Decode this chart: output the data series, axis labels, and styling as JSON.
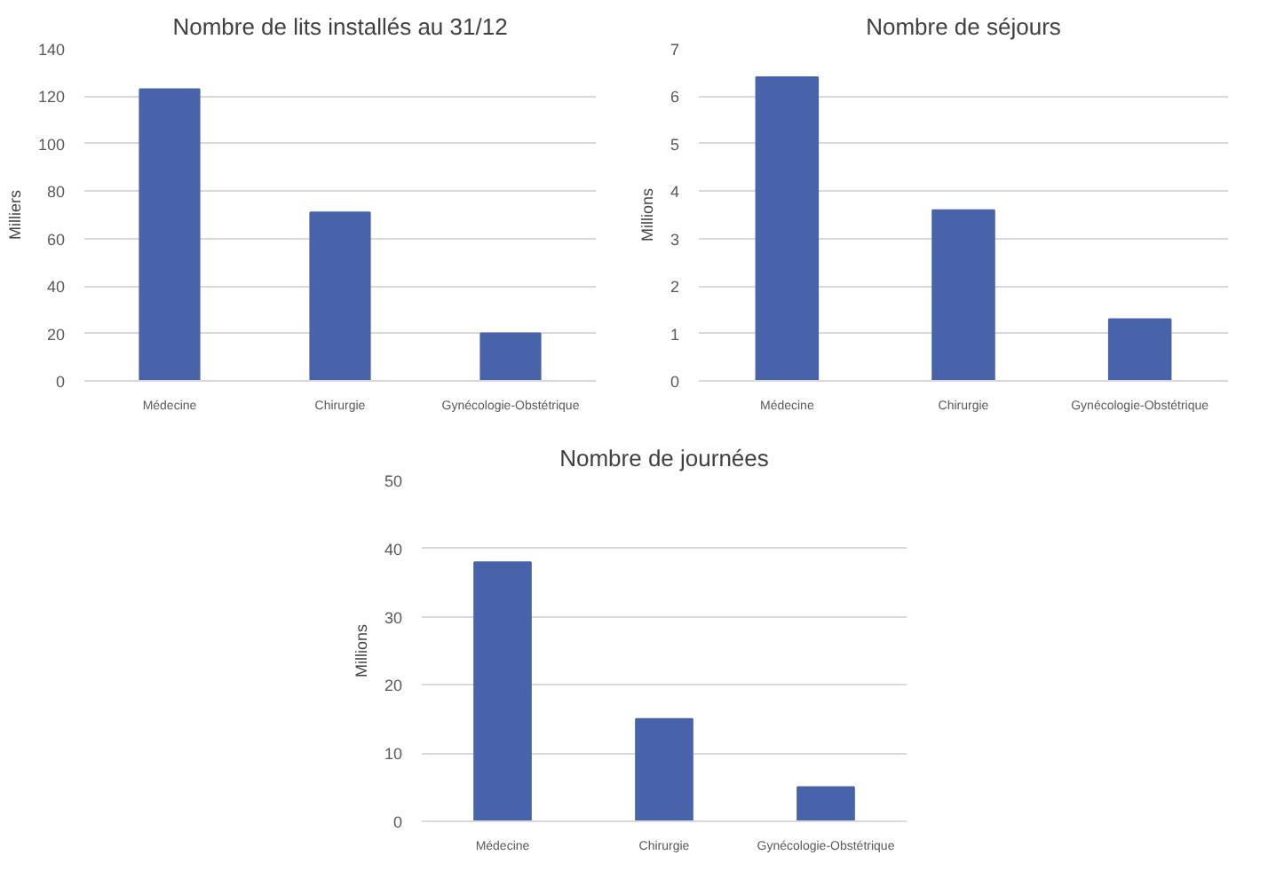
{
  "chart_data": [
    {
      "type": "bar",
      "title": "Nombre de lits installés au 31/12",
      "ylabel": "Milliers",
      "categories": [
        "Médecine",
        "Chirurgie",
        "Gynécologie-Obstétrique"
      ],
      "values": [
        123,
        71,
        20
      ],
      "color": "#4863aa",
      "ylim": [
        0,
        140
      ],
      "yticks": [
        0,
        20,
        40,
        60,
        80,
        100,
        120,
        140
      ],
      "grid": "y"
    },
    {
      "type": "bar",
      "title": "Nombre de séjours",
      "ylabel": "Millions",
      "categories": [
        "Médecine",
        "Chirurgie",
        "Gynécologie-Obstétrique"
      ],
      "values": [
        6.4,
        3.6,
        1.3
      ],
      "color": "#4863aa",
      "ylim": [
        0,
        7
      ],
      "yticks": [
        0,
        1,
        2,
        3,
        4,
        5,
        6,
        7
      ],
      "grid": "y"
    },
    {
      "type": "bar",
      "title": "Nombre de journées",
      "ylabel": "Millions",
      "categories": [
        "Médecine",
        "Chirurgie",
        "Gynécologie-Obstétrique"
      ],
      "values": [
        38,
        15,
        5
      ],
      "color": "#4863aa",
      "ylim": [
        0,
        50
      ],
      "yticks": [
        0,
        10,
        20,
        30,
        40,
        50
      ],
      "grid": "y"
    }
  ]
}
